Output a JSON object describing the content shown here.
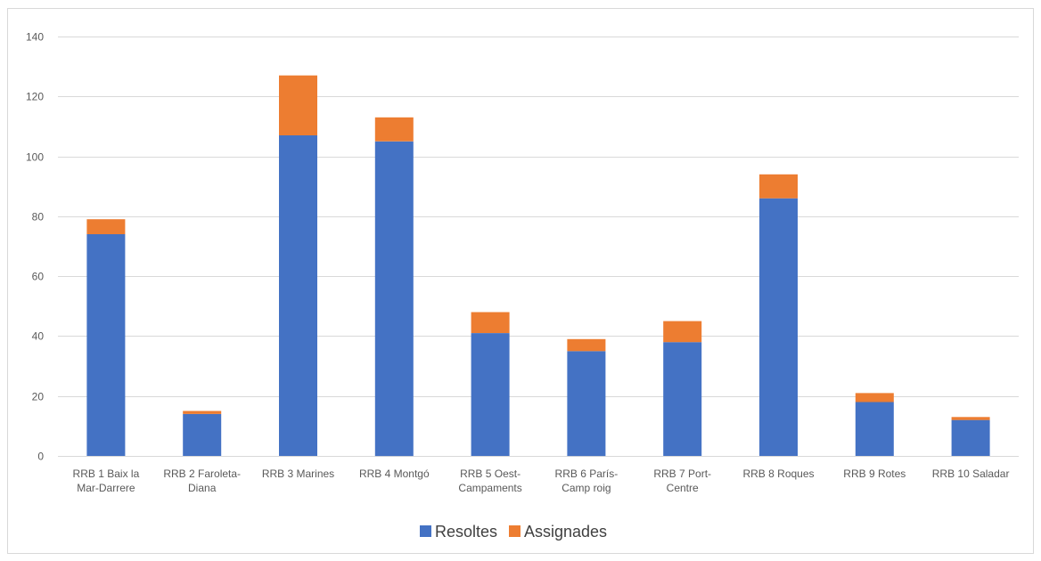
{
  "chart_data": {
    "type": "bar",
    "stacked": true,
    "title": "",
    "xlabel": "",
    "ylabel": "",
    "ylim": [
      0,
      140
    ],
    "yticks": [
      0,
      20,
      40,
      60,
      80,
      100,
      120,
      140
    ],
    "grid": true,
    "legend_position": "bottom",
    "categories": [
      [
        "RRB 1 Baix la",
        "Mar-Darrere"
      ],
      [
        "RRB 2 Faroleta-",
        "Diana"
      ],
      [
        "RRB 3 Marines"
      ],
      [
        "RRB 4 Montgó"
      ],
      [
        "RRB 5 Oest-",
        "Campaments"
      ],
      [
        "RRB 6 París-",
        "Camp roig"
      ],
      [
        "RRB 7 Port-",
        "Centre"
      ],
      [
        "RRB 8 Roques"
      ],
      [
        "RRB 9 Rotes"
      ],
      [
        "RRB 10 Saladar"
      ]
    ],
    "series": [
      {
        "name": "Resoltes",
        "color": "#4472c4",
        "values": [
          74,
          14,
          107,
          105,
          41,
          35,
          38,
          86,
          18,
          12
        ]
      },
      {
        "name": "Assignades",
        "color": "#ed7d31",
        "values": [
          5,
          1,
          20,
          8,
          7,
          4,
          7,
          8,
          3,
          1
        ]
      }
    ]
  }
}
